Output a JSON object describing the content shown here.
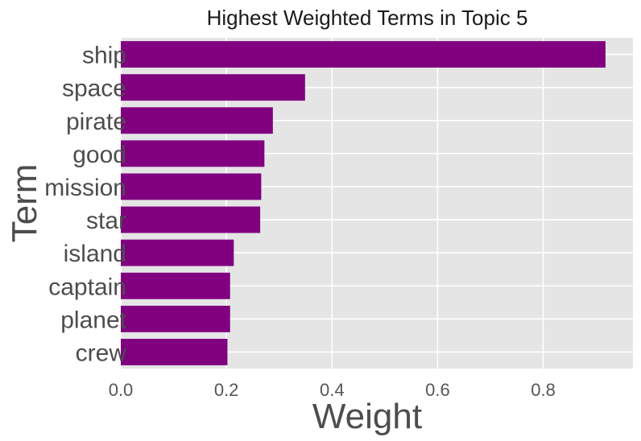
{
  "chart_data": {
    "type": "bar",
    "orientation": "horizontal",
    "title": "Highest Weighted Terms in Topic 5",
    "xlabel": "Weight",
    "ylabel": "Term",
    "categories": [
      "ship",
      "space",
      "pirate",
      "good",
      "mission",
      "star",
      "island",
      "captain",
      "planet",
      "crew"
    ],
    "values": [
      0.918,
      0.349,
      0.288,
      0.272,
      0.266,
      0.264,
      0.214,
      0.207,
      0.207,
      0.202
    ],
    "xlim": [
      0.0,
      0.97
    ],
    "xticks": [
      "0.0",
      "0.2",
      "0.4",
      "0.6",
      "0.8"
    ],
    "grid": true,
    "bar_color": "#800080",
    "background_color": "#e5e5e5",
    "grid_color": "#ffffff"
  }
}
